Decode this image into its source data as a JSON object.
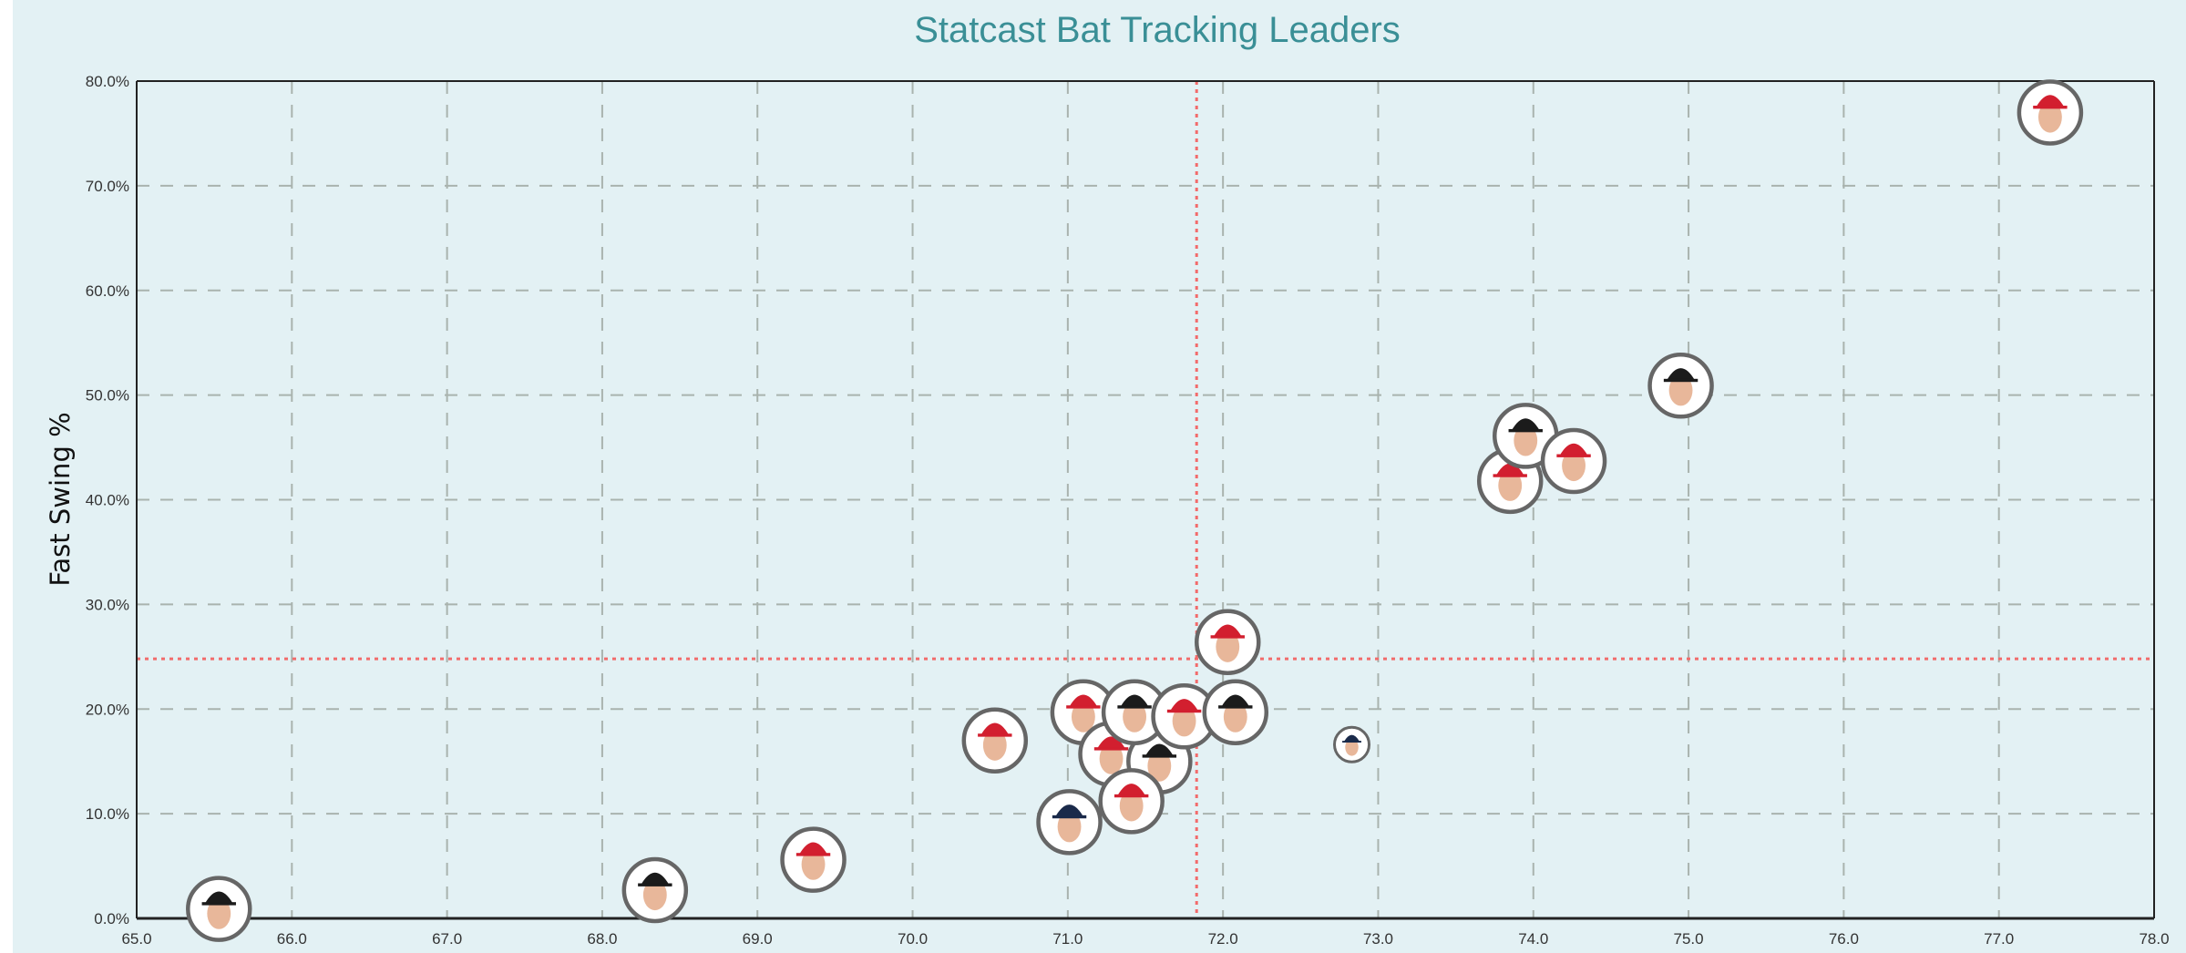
{
  "chart_data": {
    "type": "scatter",
    "title": "Statcast Bat Tracking Leaders",
    "xlabel": "",
    "ylabel": "Fast Swing %",
    "xlim": [
      65.0,
      78.0
    ],
    "ylim": [
      0,
      80
    ],
    "x_ticks": [
      "65.0",
      "66.0",
      "67.0",
      "68.0",
      "69.0",
      "70.0",
      "71.0",
      "72.0",
      "73.0",
      "74.0",
      "75.0",
      "76.0",
      "77.0",
      "78.0"
    ],
    "y_ticks": [
      "0.0%",
      "10.0%",
      "20.0%",
      "30.0%",
      "40.0%",
      "50.0%",
      "60.0%",
      "70.0%",
      "80.0%"
    ],
    "grid": true,
    "marker": "player headshot in circle",
    "reference_lines": {
      "x_mean": 71.83,
      "y_mean": 24.8,
      "color": "#f26b6b",
      "style": "dotted"
    },
    "team_colors": {
      "SF": "#1b1b1b",
      "PHI": "#d21f2f",
      "ATL": "#1a2a4a",
      "MIN": "#1a2a4a"
    },
    "points": [
      {
        "x": 65.53,
        "y": 0.9,
        "team": "SF"
      },
      {
        "x": 68.34,
        "y": 2.7,
        "team": "SF"
      },
      {
        "x": 69.36,
        "y": 5.6,
        "team": "PHI"
      },
      {
        "x": 70.53,
        "y": 17.0,
        "team": "PHI"
      },
      {
        "x": 71.01,
        "y": 9.2,
        "team": "ATL"
      },
      {
        "x": 71.1,
        "y": 19.7,
        "team": "PHI"
      },
      {
        "x": 71.28,
        "y": 15.7,
        "team": "PHI"
      },
      {
        "x": 71.59,
        "y": 15.0,
        "team": "SF"
      },
      {
        "x": 71.41,
        "y": 11.2,
        "team": "PHI"
      },
      {
        "x": 71.43,
        "y": 19.7,
        "team": "SF"
      },
      {
        "x": 71.75,
        "y": 19.3,
        "team": "PHI"
      },
      {
        "x": 72.03,
        "y": 26.4,
        "team": "PHI"
      },
      {
        "x": 72.08,
        "y": 19.7,
        "team": "SF"
      },
      {
        "x": 72.83,
        "y": 16.6,
        "team": "MIN",
        "small": true
      },
      {
        "x": 73.85,
        "y": 41.8,
        "team": "PHI"
      },
      {
        "x": 73.95,
        "y": 46.1,
        "team": "SF"
      },
      {
        "x": 74.26,
        "y": 43.7,
        "team": "PHI"
      },
      {
        "x": 74.95,
        "y": 50.9,
        "team": "SF"
      },
      {
        "x": 77.33,
        "y": 77.0,
        "team": "PHI"
      }
    ]
  }
}
